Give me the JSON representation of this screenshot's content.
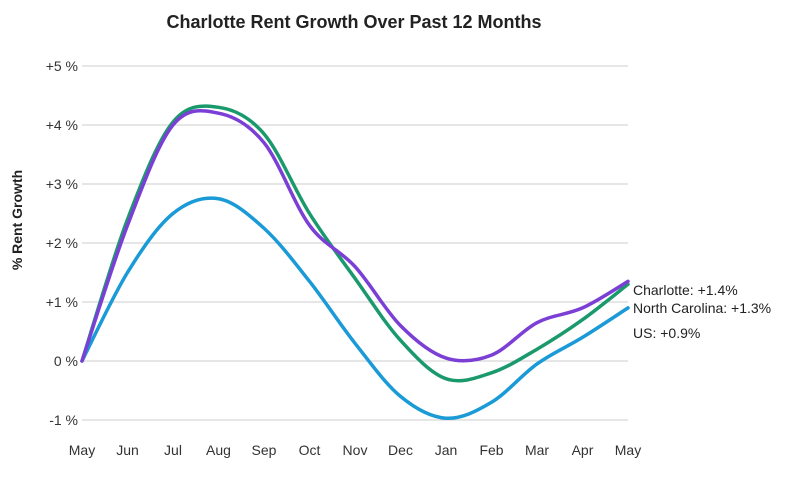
{
  "chart_data": {
    "type": "line",
    "title": "Charlotte Rent Growth Over Past 12 Months",
    "ylabel": "% Rent Growth",
    "xlabel": "",
    "categories": [
      "May",
      "Jun",
      "Jul",
      "Aug",
      "Sep",
      "Oct",
      "Nov",
      "Dec",
      "Jan",
      "Feb",
      "Mar",
      "Apr",
      "May"
    ],
    "y_ticks": [
      {
        "value": 5,
        "label": "+5 %"
      },
      {
        "value": 4,
        "label": "+4 %"
      },
      {
        "value": 3,
        "label": "+3 %"
      },
      {
        "value": 2,
        "label": "+2 %"
      },
      {
        "value": 1,
        "label": "+1 %"
      },
      {
        "value": 0,
        "label": "0 %"
      },
      {
        "value": -1,
        "label": "-1 %"
      }
    ],
    "ylim": [
      -1,
      5
    ],
    "grid": true,
    "series": [
      {
        "name": "US",
        "end_label": "US: +0.9%",
        "color": "#1a9ad6",
        "values": [
          0,
          1.5,
          2.5,
          2.75,
          2.25,
          1.35,
          0.3,
          -0.6,
          -0.97,
          -0.7,
          -0.05,
          0.4,
          0.9
        ]
      },
      {
        "name": "North Carolina",
        "end_label": "North Carolina: +1.3%",
        "color": "#1a9a6c",
        "values": [
          0,
          2.4,
          4.05,
          4.3,
          3.85,
          2.5,
          1.4,
          0.35,
          -0.3,
          -0.2,
          0.2,
          0.7,
          1.3
        ]
      },
      {
        "name": "Charlotte",
        "end_label": "Charlotte: +1.4%",
        "color": "#7b3fd6",
        "values": [
          0,
          2.3,
          4.0,
          4.2,
          3.7,
          2.3,
          1.6,
          0.6,
          0.05,
          0.1,
          0.65,
          0.9,
          1.35
        ]
      }
    ]
  }
}
